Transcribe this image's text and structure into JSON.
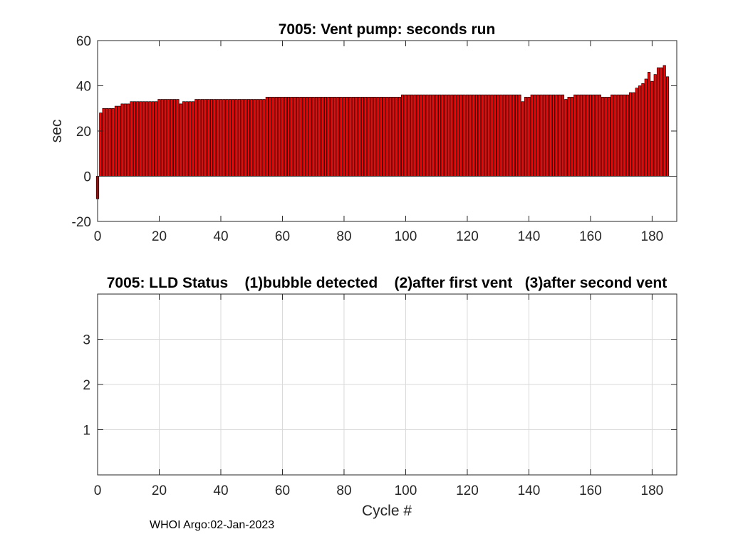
{
  "chart_data": [
    {
      "type": "bar",
      "title": "7005: Vent pump: seconds run",
      "xlabel": "",
      "ylabel": "sec",
      "xlim": [
        0,
        188
      ],
      "ylim": [
        -20,
        60
      ],
      "xticks": [
        0,
        20,
        40,
        60,
        80,
        100,
        120,
        140,
        160,
        180
      ],
      "yticks": [
        -20,
        0,
        20,
        40,
        60
      ],
      "grid": false,
      "bar_color": "#ff0000",
      "edge_color": "#000000",
      "x_start": 0,
      "values": [
        -10,
        28,
        30,
        30,
        30,
        30,
        31,
        31,
        32,
        32,
        32,
        33,
        33,
        33,
        33,
        33,
        33,
        33,
        33,
        33,
        34,
        34,
        34,
        34,
        34,
        34,
        34,
        32,
        33,
        33,
        33,
        33,
        34,
        34,
        34,
        34,
        34,
        34,
        34,
        34,
        34,
        34,
        34,
        34,
        34,
        34,
        34,
        34,
        34,
        34,
        34,
        34,
        34,
        34,
        34,
        35,
        35,
        35,
        35,
        35,
        35,
        35,
        35,
        35,
        35,
        35,
        35,
        35,
        35,
        35,
        35,
        35,
        35,
        35,
        35,
        35,
        35,
        35,
        35,
        35,
        35,
        35,
        35,
        35,
        35,
        35,
        35,
        35,
        35,
        35,
        35,
        35,
        35,
        35,
        35,
        35,
        35,
        35,
        35,
        36,
        36,
        36,
        36,
        36,
        36,
        36,
        36,
        36,
        36,
        36,
        36,
        36,
        36,
        36,
        36,
        36,
        36,
        36,
        36,
        36,
        36,
        36,
        36,
        36,
        36,
        36,
        36,
        36,
        36,
        36,
        36,
        36,
        36,
        36,
        36,
        36,
        36,
        36,
        33,
        35,
        35,
        36,
        36,
        36,
        36,
        36,
        36,
        36,
        36,
        36,
        36,
        36,
        34,
        35,
        35,
        36,
        36,
        36,
        36,
        36,
        36,
        36,
        36,
        36,
        35,
        35,
        35,
        36,
        36,
        36,
        36,
        36,
        36,
        37,
        37,
        39,
        40,
        41,
        43,
        46,
        42,
        45,
        48,
        48,
        49,
        44
      ]
    },
    {
      "type": "scatter",
      "title": "7005: LLD Status    (1)bubble detected    (2)after first vent   (3)after second vent",
      "xlabel": "Cycle #",
      "ylabel": "",
      "xlim": [
        0,
        188
      ],
      "ylim": [
        0,
        4
      ],
      "xticks": [
        0,
        20,
        40,
        60,
        80,
        100,
        120,
        140,
        160,
        180
      ],
      "yticks": [
        1,
        2,
        3
      ],
      "grid": true,
      "x": [],
      "y": []
    }
  ],
  "footer": "WHOI Argo:02-Jan-2023"
}
